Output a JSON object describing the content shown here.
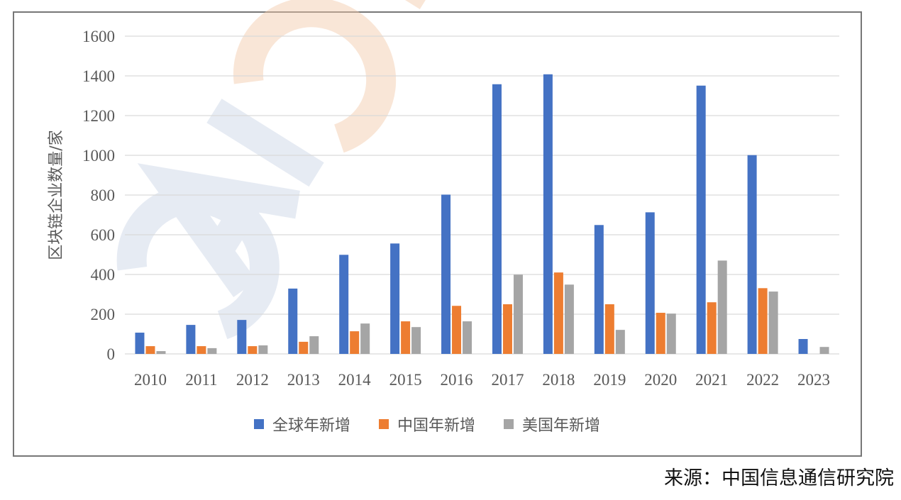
{
  "chart_data": {
    "type": "bar",
    "title": "",
    "xlabel": "",
    "ylabel": "区块链企业数量/家",
    "ylim": [
      0,
      1600
    ],
    "yticks": [
      0,
      200,
      400,
      600,
      800,
      1000,
      1200,
      1400,
      1600
    ],
    "grid": true,
    "legend_position": "bottom",
    "categories": [
      "2010",
      "2011",
      "2012",
      "2013",
      "2014",
      "2015",
      "2016",
      "2017",
      "2018",
      "2019",
      "2020",
      "2021",
      "2022",
      "2023"
    ],
    "series": [
      {
        "name": "全球年新增",
        "color": "#4472C4",
        "values": [
          107,
          146,
          171,
          329,
          499,
          556,
          802,
          1358,
          1408,
          649,
          713,
          1351,
          1001,
          75
        ]
      },
      {
        "name": "中国年新增",
        "color": "#ED7D31",
        "values": [
          39,
          39,
          39,
          61,
          114,
          164,
          242,
          250,
          410,
          250,
          207,
          260,
          331,
          0
        ]
      },
      {
        "name": "美国年新增",
        "color": "#A5A5A5",
        "values": [
          14,
          29,
          43,
          89,
          153,
          135,
          164,
          399,
          349,
          121,
          203,
          470,
          314,
          35
        ]
      }
    ]
  },
  "watermark": "CAICT",
  "source": "来源：中国信息通信研究院"
}
